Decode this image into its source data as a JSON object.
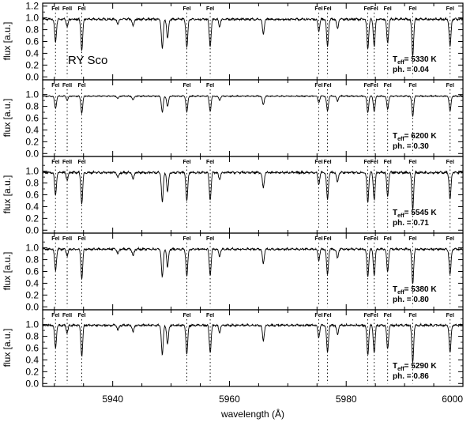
{
  "chart_data": {
    "type": "line",
    "star_name": "RY Sco",
    "xlabel": "wavelength (Å)",
    "ylabel": "flux [a.u.]",
    "xlim": [
      5928,
      6000
    ],
    "ylim": [
      -0.05,
      1.25
    ],
    "x_ticks": [
      5940,
      5960,
      5980,
      6000
    ],
    "x_tick_labels": [
      "5940",
      "5960",
      "5980",
      "6000"
    ],
    "y_tick_labels_top_panel": [
      "0.0",
      "0.2",
      "0.4",
      "0.6",
      "0.8",
      "1.0",
      "1.2"
    ],
    "y_tick_labels_other_panels": [
      "0.0",
      "0.2",
      "0.4",
      "0.6",
      "0.8",
      "1.0"
    ],
    "teff_label": "T",
    "teff_sub": "eff",
    "phase_label": "ph.",
    "unit": "K",
    "grid": false,
    "line_markers": [
      {
        "name": "FeI",
        "wavelength": 5930.2
      },
      {
        "name": "FeII",
        "wavelength": 5932.2
      },
      {
        "name": "FeI",
        "wavelength": 5934.7
      },
      {
        "name": "FeI",
        "wavelength": 5952.7
      },
      {
        "name": "FeI",
        "wavelength": 5956.7
      },
      {
        "name": "FeI",
        "wavelength": 5975.3
      },
      {
        "name": "FeI",
        "wavelength": 5976.8
      },
      {
        "name": "FeI",
        "wavelength": 5983.7
      },
      {
        "name": "FeI",
        "wavelength": 5984.8
      },
      {
        "name": "FeI",
        "wavelength": 5987.1
      },
      {
        "name": "FeI",
        "wavelength": 5991.4
      },
      {
        "name": "FeI",
        "wavelength": 5997.8
      }
    ],
    "absorption_features": [
      {
        "wavelength": 5930.2,
        "strength": 0.38
      },
      {
        "wavelength": 5932.2,
        "strength": 0.12
      },
      {
        "wavelength": 5934.7,
        "strength": 0.52
      },
      {
        "wavelength": 5940.9,
        "strength": 0.08
      },
      {
        "wavelength": 5943.5,
        "strength": 0.12
      },
      {
        "wavelength": 5948.5,
        "strength": 0.5
      },
      {
        "wavelength": 5949.4,
        "strength": 0.32
      },
      {
        "wavelength": 5952.7,
        "strength": 0.48
      },
      {
        "wavelength": 5956.7,
        "strength": 0.46
      },
      {
        "wavelength": 5958.3,
        "strength": 0.12
      },
      {
        "wavelength": 5965.8,
        "strength": 0.26
      },
      {
        "wavelength": 5975.3,
        "strength": 0.2
      },
      {
        "wavelength": 5976.8,
        "strength": 0.46
      },
      {
        "wavelength": 5978.5,
        "strength": 0.16
      },
      {
        "wavelength": 5983.7,
        "strength": 0.5
      },
      {
        "wavelength": 5984.8,
        "strength": 0.46
      },
      {
        "wavelength": 5987.1,
        "strength": 0.4
      },
      {
        "wavelength": 5991.4,
        "strength": 0.62
      },
      {
        "wavelength": 5997.8,
        "strength": 0.46
      }
    ],
    "series": [
      {
        "teff": "5330",
        "phase": "0.04",
        "continuum": 0.99,
        "depth_scale": 1.0
      },
      {
        "teff": "6200",
        "phase": "0.30",
        "continuum": 0.98,
        "depth_scale": 0.55
      },
      {
        "teff": "5545",
        "phase": "0.71",
        "continuum": 0.99,
        "depth_scale": 1.0
      },
      {
        "teff": "5380",
        "phase": "0.80",
        "continuum": 0.99,
        "depth_scale": 0.95
      },
      {
        "teff": "5290",
        "phase": "0.86",
        "continuum": 1.0,
        "depth_scale": 1.0
      }
    ]
  }
}
